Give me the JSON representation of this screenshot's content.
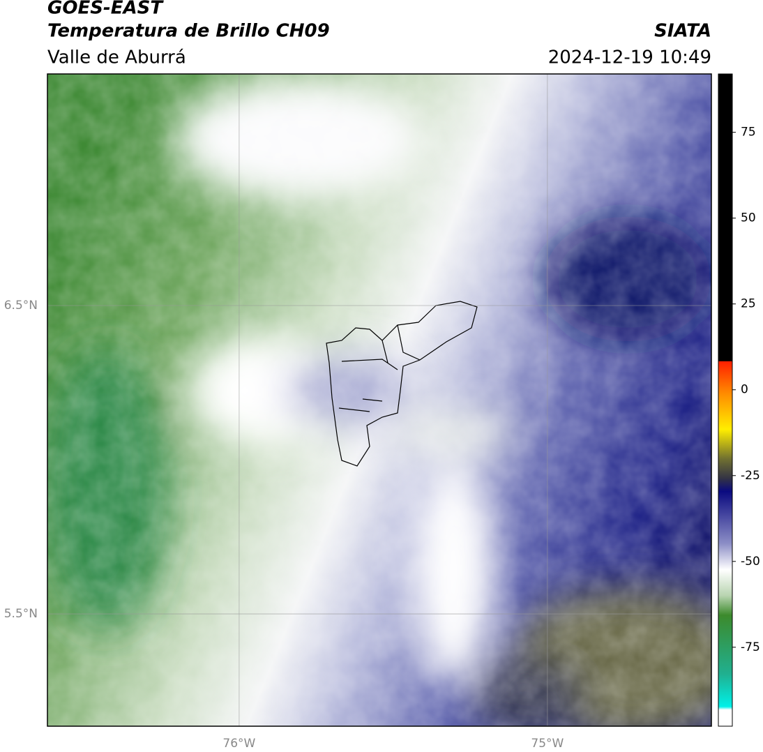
{
  "header": {
    "title": "GOES-EAST",
    "subtitle": "Temperatura de Brillo CH09",
    "region": "Valle de Aburrá",
    "source": "SIATA",
    "datetime": "2024-12-19 10:49"
  },
  "map": {
    "xlim": [
      -76.622,
      -74.468
    ],
    "ylim": [
      5.136,
      7.251
    ],
    "xticks": [
      {
        "value": -76,
        "label": "76°W"
      },
      {
        "value": -75,
        "label": "75°W"
      }
    ],
    "yticks": [
      {
        "value": 6.5,
        "label": "6.5°N"
      },
      {
        "value": 5.5,
        "label": "5.5°N"
      }
    ],
    "grid": true
  },
  "colorbar": {
    "lim": [
      -98,
      92
    ],
    "ticks": [
      75,
      50,
      25,
      0,
      -25,
      -50,
      -75
    ]
  }
}
